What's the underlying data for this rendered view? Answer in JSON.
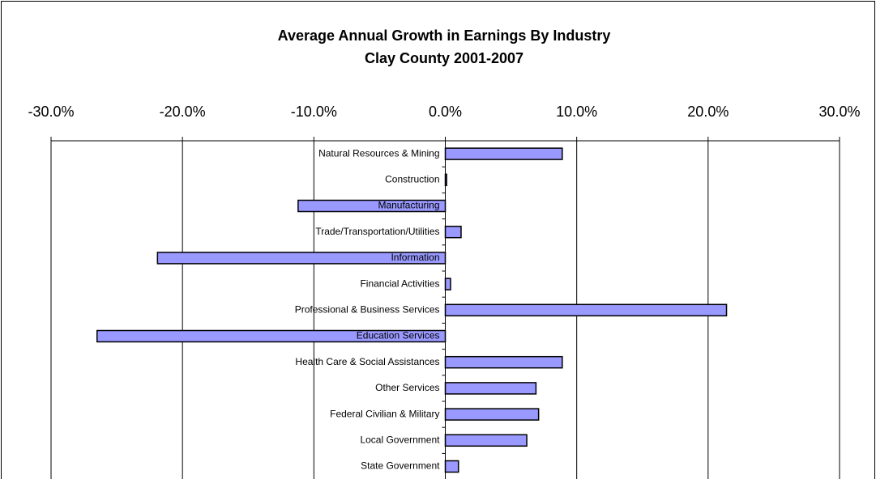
{
  "chart_data": {
    "type": "bar",
    "orientation": "horizontal",
    "title": "Average Annual Growth in Earnings By Industry",
    "subtitle": "Clay County 2001-2007",
    "categories": [
      "Natural Resources & Mining",
      "Construction",
      "Manufacturing",
      "Trade/Transportation/Utilities",
      "Information",
      "Financial Activities",
      "Professional & Business Services",
      "Education Services",
      "Health Care & Social Assistances",
      "Other Services",
      "Federal Civilian & Military",
      "Local Government",
      "State Government"
    ],
    "values": [
      8.9,
      0.1,
      -11.2,
      1.2,
      -21.9,
      0.4,
      21.4,
      -26.5,
      8.9,
      6.9,
      7.1,
      6.2,
      1.0
    ],
    "color": "#9999ff",
    "xlim": [
      -30,
      30
    ],
    "xticks": [
      {
        "value": -30,
        "label": "-30.0%"
      },
      {
        "value": -20,
        "label": "-20.0%"
      },
      {
        "value": -10,
        "label": "-10.0%"
      },
      {
        "value": 0,
        "label": "0.0%"
      },
      {
        "value": 10,
        "label": "10.0%"
      },
      {
        "value": 20,
        "label": "20.0%"
      },
      {
        "value": 30,
        "label": "30.0%"
      }
    ],
    "grid": true
  }
}
